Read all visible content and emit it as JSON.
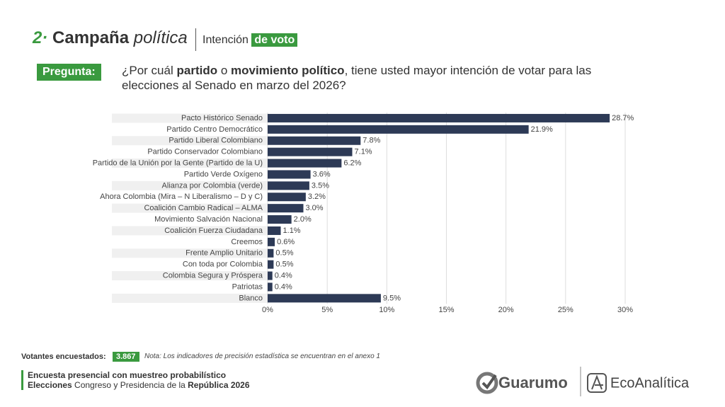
{
  "header": {
    "number": "2·",
    "title": "Campaña",
    "title_italic": "política",
    "subtitle": "Intención",
    "subtitle_highlight": "de voto"
  },
  "question": {
    "label": "Pregunta:",
    "parts": [
      "¿Por cuál ",
      "partido",
      " o ",
      "movimiento político",
      ", tiene usted mayor intención de votar para las elecciones al Senado en marzo del 2026?"
    ]
  },
  "chart_data": {
    "type": "hbar",
    "categories": [
      "Pacto Histórico Senado",
      "Partido Centro Democrático",
      "Partido Liberal Colombiano",
      "Partido Conservador Colombiano",
      "Partido de la Unión por la Gente (Partido de la U)",
      "Partido Verde Oxígeno",
      "Alianza por Colombia (verde)",
      "Ahora Colombia (Mira – N Liberalismo – D y C)",
      "Coalición Cambio Radical – ALMA",
      "Movimiento Salvación Nacional",
      "Coalición Fuerza Ciudadana",
      "Creemos",
      "Frente Amplio Unitario",
      "Con toda por Colombia",
      "Colombia Segura y Próspera",
      "Patriotas",
      "Blanco"
    ],
    "values": [
      28.7,
      21.9,
      7.8,
      7.1,
      6.2,
      3.6,
      3.5,
      3.2,
      3.0,
      2.0,
      1.1,
      0.6,
      0.5,
      0.5,
      0.4,
      0.4,
      9.5
    ],
    "value_labels": [
      "28.7%",
      "21.9%",
      "7.8%",
      "7.1%",
      "6.2%",
      "3.6%",
      "3.5%",
      "3.2%",
      "3.0%",
      "2.0%",
      "1.1%",
      "0.6%",
      "0.5%",
      "0.5%",
      "0.4%",
      "0.4%",
      "9.5%"
    ],
    "color": "#2d3a56",
    "xlim": [
      0,
      30
    ],
    "xticks": [
      {
        "value": 0,
        "label": "0%"
      },
      {
        "value": 5,
        "label": "5%"
      },
      {
        "value": 10,
        "label": "10%"
      },
      {
        "value": 15,
        "label": "15%"
      },
      {
        "value": 20,
        "label": "20%"
      },
      {
        "value": 25,
        "label": "25%"
      },
      {
        "value": 30,
        "label": "30%"
      }
    ],
    "grid": true
  },
  "footer": {
    "sample_label": "Votantes encuestados:",
    "sample_size": "3.867",
    "note": "Nota: Los indicadores de precisión estadística se encuentran en el anexo 1",
    "line1": "Encuesta presencial con muestreo probabilístico",
    "line2": [
      "Elecciones",
      " Congreso y Presidencia de la ",
      "República 2026"
    ],
    "logo1": "Guarumo",
    "logo2": "EcoAnalítica"
  }
}
